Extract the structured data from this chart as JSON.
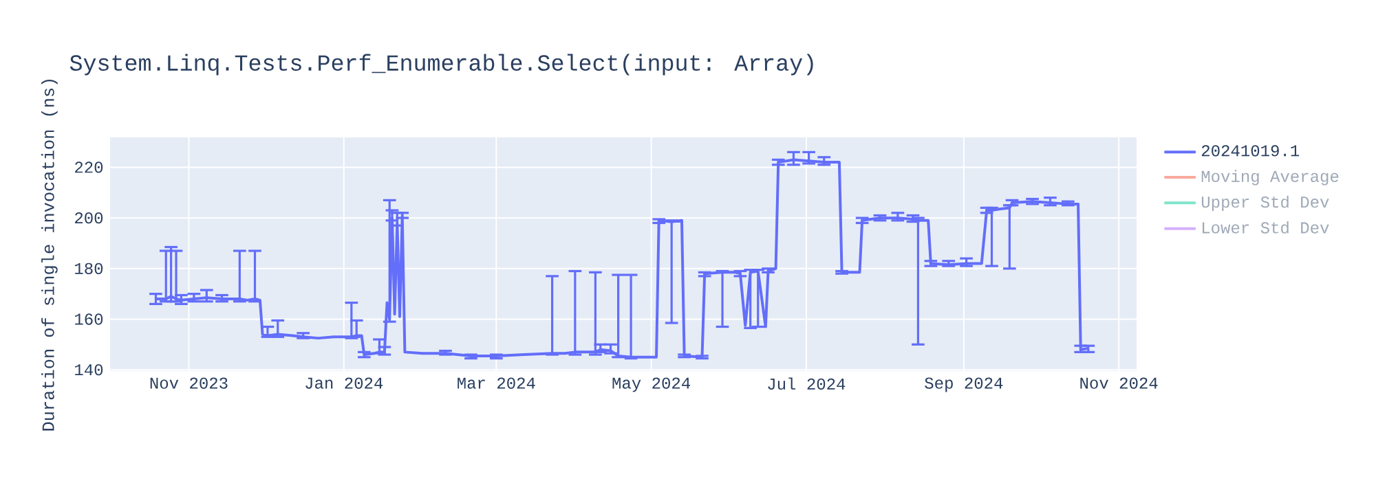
{
  "chart_data": {
    "type": "line",
    "title": "System.Linq.Tests.Perf_Enumerable.Select(input: Array)",
    "ylabel": "Duration of single invocation (ns)",
    "x": [
      "2023-10-19",
      "2023-10-23",
      "2023-10-25",
      "2023-10-27",
      "2023-10-29",
      "2023-11-03",
      "2023-11-08",
      "2023-11-14",
      "2023-11-21",
      "2023-11-24",
      "2023-11-27",
      "2023-11-29",
      "2023-11-30",
      "2023-12-02",
      "2023-12-06",
      "2023-12-12",
      "2023-12-16",
      "2023-12-22",
      "2023-12-28",
      "2024-01-04",
      "2024-01-06",
      "2024-01-08",
      "2024-01-09",
      "2024-01-13",
      "2024-01-15",
      "2024-01-17",
      "2024-01-18",
      "2024-01-19",
      "2024-01-20",
      "2024-01-21",
      "2024-01-22",
      "2024-01-23",
      "2024-01-24",
      "2024-01-25",
      "2024-02-01",
      "2024-02-10",
      "2024-02-20",
      "2024-03-01",
      "2024-03-12",
      "2024-03-23",
      "2024-03-28",
      "2024-04-01",
      "2024-04-05",
      "2024-04-09",
      "2024-04-11",
      "2024-04-15",
      "2024-04-18",
      "2024-04-23",
      "2024-04-28",
      "2024-05-03",
      "2024-05-04",
      "2024-05-09",
      "2024-05-13",
      "2024-05-14",
      "2024-05-21",
      "2024-05-22",
      "2024-05-29",
      "2024-06-03",
      "2024-06-05",
      "2024-06-07",
      "2024-06-09",
      "2024-06-12",
      "2024-06-15",
      "2024-06-16",
      "2024-06-19",
      "2024-06-20",
      "2024-06-26",
      "2024-07-02",
      "2024-07-08",
      "2024-07-14",
      "2024-07-15",
      "2024-07-22",
      "2024-07-23",
      "2024-07-30",
      "2024-08-06",
      "2024-08-12",
      "2024-08-14",
      "2024-08-18",
      "2024-08-19",
      "2024-08-26",
      "2024-09-02",
      "2024-09-08",
      "2024-09-10",
      "2024-09-12",
      "2024-09-15",
      "2024-09-19",
      "2024-09-20",
      "2024-09-28",
      "2024-10-05",
      "2024-10-12",
      "2024-10-16",
      "2024-10-17",
      "2024-10-20"
    ],
    "series": [
      {
        "name": "20241019.1",
        "color": "#636efa",
        "values": [
          168,
          168,
          169,
          168,
          167.5,
          168,
          168.5,
          168,
          168,
          167.5,
          168,
          167.5,
          154,
          153.5,
          154,
          153.5,
          153,
          152.5,
          153,
          153,
          153.5,
          153.5,
          146,
          146.5,
          147,
          147,
          166.5,
          160,
          200,
          162,
          198,
          161,
          201,
          147,
          146.5,
          146.5,
          145.5,
          145.5,
          146,
          146.5,
          146.5,
          147,
          147,
          147,
          148,
          147.5,
          145.5,
          145,
          145,
          145,
          199,
          198.5,
          199,
          145.5,
          145,
          178,
          178.5,
          178.5,
          178,
          157.5,
          178.5,
          179,
          157,
          179,
          180,
          222,
          223,
          222.5,
          222,
          222,
          178.5,
          178.5,
          199,
          200,
          200,
          199.5,
          199,
          199,
          182,
          181.5,
          182,
          182,
          203,
          203,
          203.5,
          204,
          206,
          206.5,
          206,
          205.5,
          205.5,
          148,
          148.5
        ],
        "errors": [
          [
            166,
            170
          ],
          [
            167,
            187
          ],
          [
            167,
            188.5
          ],
          [
            167,
            187
          ],
          [
            166,
            169.5
          ],
          [
            167,
            170
          ],
          [
            167,
            171.5
          ],
          [
            167,
            169.5
          ],
          [
            167,
            187
          ],
          null,
          [
            167,
            187
          ],
          null,
          null,
          [
            153,
            157
          ],
          [
            153,
            159.5
          ],
          null,
          [
            152.5,
            154.5
          ],
          null,
          null,
          [
            152.5,
            166.5
          ],
          [
            153,
            159.5
          ],
          null,
          [
            145,
            147
          ],
          null,
          [
            146.5,
            152
          ],
          [
            146,
            149
          ],
          null,
          [
            159,
            207
          ],
          [
            199,
            203
          ],
          null,
          [
            197,
            202
          ],
          null,
          [
            200,
            202
          ],
          null,
          null,
          [
            146,
            147.5
          ],
          [
            144.5,
            146
          ],
          [
            144.5,
            146
          ],
          null,
          [
            146,
            177
          ],
          null,
          [
            146,
            179
          ],
          null,
          [
            146,
            178.5
          ],
          [
            147,
            150
          ],
          [
            146.5,
            150
          ],
          [
            145,
            177.5
          ],
          [
            144.5,
            177.5
          ],
          null,
          null,
          [
            198,
            199.5
          ],
          [
            158.5,
            199
          ],
          null,
          [
            145,
            146
          ],
          [
            144.5,
            145.5
          ],
          [
            177,
            178.5
          ],
          [
            157,
            179
          ],
          null,
          [
            177,
            179
          ],
          null,
          [
            156.5,
            179.5
          ],
          [
            157,
            179.5
          ],
          null,
          [
            178.5,
            180
          ],
          null,
          [
            221,
            223
          ],
          [
            221,
            226
          ],
          [
            221.5,
            226
          ],
          [
            221,
            224
          ],
          null,
          [
            178,
            179
          ],
          null,
          [
            198,
            200
          ],
          [
            199,
            201
          ],
          [
            199,
            202
          ],
          [
            198.5,
            201
          ],
          [
            150,
            200
          ],
          null,
          [
            181,
            183
          ],
          [
            181,
            183
          ],
          [
            181,
            184
          ],
          null,
          [
            202,
            204
          ],
          [
            181,
            204
          ],
          null,
          [
            180,
            205
          ],
          [
            205,
            207
          ],
          [
            205.5,
            207.5
          ],
          [
            205,
            208
          ],
          [
            205,
            206.5
          ],
          null,
          [
            147,
            149.5
          ],
          [
            147,
            149.5
          ]
        ]
      },
      {
        "name": "Moving Average",
        "color": "#f7aa9d",
        "values": [
          null,
          null,
          null,
          null,
          null,
          null,
          null,
          null,
          null,
          null,
          null,
          null,
          null,
          null,
          null,
          null,
          null,
          null,
          null,
          null,
          null,
          null,
          null,
          null,
          null,
          null,
          null,
          null,
          null,
          null,
          null,
          null,
          null,
          null,
          null,
          null,
          null,
          null,
          null,
          null,
          null,
          null,
          null,
          null,
          null,
          null,
          null,
          null,
          null,
          null,
          null,
          null,
          null,
          null,
          null,
          null,
          null,
          null,
          null,
          null,
          null,
          null,
          null,
          null,
          null,
          null,
          null,
          null,
          null,
          null,
          null,
          null,
          null,
          null,
          null,
          null,
          null,
          null,
          null,
          null,
          null,
          null,
          null,
          null,
          null,
          null,
          null,
          null,
          null,
          null,
          null,
          null,
          null
        ]
      },
      {
        "name": "Upper Std Dev",
        "color": "#7fe5ca",
        "values": [
          null,
          null,
          null,
          null,
          null,
          null,
          null,
          null,
          null,
          null,
          null,
          null,
          null,
          null,
          null,
          null,
          null,
          null,
          null,
          null,
          null,
          null,
          null,
          null,
          null,
          null,
          null,
          null,
          null,
          null,
          null,
          null,
          null,
          null,
          null,
          null,
          null,
          null,
          null,
          null,
          null,
          null,
          null,
          null,
          null,
          null,
          null,
          null,
          null,
          null,
          null,
          null,
          null,
          null,
          null,
          null,
          null,
          null,
          null,
          null,
          null,
          null,
          null,
          null,
          null,
          null,
          null,
          null,
          null,
          null,
          null,
          null,
          null,
          null,
          null,
          null,
          null,
          null,
          null,
          null,
          null,
          null,
          null,
          null,
          null,
          null,
          null,
          null,
          null,
          null,
          null,
          null,
          null
        ]
      },
      {
        "name": "Lower Std Dev",
        "color": "#d5b1fc",
        "values": [
          null,
          null,
          null,
          null,
          null,
          null,
          null,
          null,
          null,
          null,
          null,
          null,
          null,
          null,
          null,
          null,
          null,
          null,
          null,
          null,
          null,
          null,
          null,
          null,
          null,
          null,
          null,
          null,
          null,
          null,
          null,
          null,
          null,
          null,
          null,
          null,
          null,
          null,
          null,
          null,
          null,
          null,
          null,
          null,
          null,
          null,
          null,
          null,
          null,
          null,
          null,
          null,
          null,
          null,
          null,
          null,
          null,
          null,
          null,
          null,
          null,
          null,
          null,
          null,
          null,
          null,
          null,
          null,
          null,
          null,
          null,
          null,
          null,
          null,
          null,
          null,
          null,
          null,
          null,
          null,
          null,
          null,
          null,
          null,
          null,
          null,
          null,
          null,
          null,
          null,
          null,
          null,
          null
        ]
      }
    ],
    "xlim": [
      "2023-10-01",
      "2024-11-08"
    ],
    "xticks": [
      {
        "value": "2023-11-01",
        "label": "Nov 2023"
      },
      {
        "value": "2024-01-01",
        "label": "Jan 2024"
      },
      {
        "value": "2024-03-01",
        "label": "Mar 2024"
      },
      {
        "value": "2024-05-01",
        "label": "May 2024"
      },
      {
        "value": "2024-07-01",
        "label": "Jul 2024"
      },
      {
        "value": "2024-09-01",
        "label": "Sep 2024"
      },
      {
        "value": "2024-11-01",
        "label": "Nov 2024"
      }
    ],
    "ylim": [
      139.5,
      231.8
    ],
    "yticks": [
      140,
      160,
      180,
      200,
      220
    ],
    "grid": true,
    "legend": "right",
    "marker": "none"
  }
}
